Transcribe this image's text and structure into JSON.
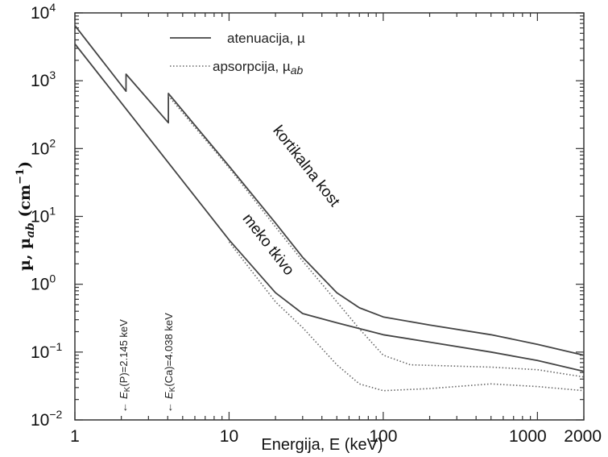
{
  "chart_data": {
    "type": "line",
    "xscale": "log",
    "yscale": "log",
    "xlim": [
      1,
      2000
    ],
    "ylim": [
      0.01,
      10000
    ],
    "xlabel": "Energija, E (keV)",
    "ylabel_main": "µ, µ",
    "ylabel_sub": "ab",
    "ylabel_unit": " (cm",
    "ylabel_exp": "−1",
    "ylabel_close": ")",
    "x_ticks": [
      {
        "value": 1,
        "label": "1"
      },
      {
        "value": 10,
        "label": "10"
      },
      {
        "value": 100,
        "label": "100"
      },
      {
        "value": 1000,
        "label": "1000"
      },
      {
        "value": 2000,
        "label": "2000"
      }
    ],
    "y_ticks": [
      {
        "value": 0.01,
        "base": "10",
        "exp": "−2"
      },
      {
        "value": 0.1,
        "base": "10",
        "exp": "−1"
      },
      {
        "value": 1,
        "base": "10",
        "exp": "0"
      },
      {
        "value": 10,
        "base": "10",
        "exp": "1"
      },
      {
        "value": 100,
        "base": "10",
        "exp": "2"
      },
      {
        "value": 1000,
        "base": "10",
        "exp": "3"
      },
      {
        "value": 10000,
        "base": "10",
        "exp": "4"
      }
    ],
    "legend": {
      "position": "top-center",
      "items": [
        {
          "name": "atenuacija, µ",
          "style": "solid"
        },
        {
          "name_main": "apsorpcija, µ",
          "name_sub": "ab",
          "style": "dotted"
        }
      ]
    },
    "series": [
      {
        "style": "solid",
        "points": [
          [
            1,
            6500
          ],
          [
            2.145,
            700
          ],
          [
            2.145,
            1250
          ],
          [
            4.038,
            240
          ],
          [
            4.038,
            650
          ],
          [
            10,
            55
          ],
          [
            20,
            8
          ],
          [
            30,
            2.5
          ],
          [
            50,
            0.75
          ],
          [
            70,
            0.45
          ],
          [
            100,
            0.33
          ],
          [
            200,
            0.25
          ],
          [
            500,
            0.18
          ],
          [
            1000,
            0.13
          ],
          [
            2000,
            0.09
          ]
        ]
      },
      {
        "style": "dotted",
        "points": [
          [
            4.038,
            600
          ],
          [
            10,
            52
          ],
          [
            20,
            7
          ],
          [
            30,
            2.2
          ],
          [
            50,
            0.55
          ],
          [
            70,
            0.22
          ],
          [
            100,
            0.09
          ],
          [
            150,
            0.065
          ],
          [
            500,
            0.06
          ],
          [
            1000,
            0.055
          ],
          [
            2000,
            0.043
          ]
        ]
      },
      {
        "style": "solid",
        "points": [
          [
            1,
            3500
          ],
          [
            10,
            4.5
          ],
          [
            20,
            0.75
          ],
          [
            30,
            0.37
          ],
          [
            50,
            0.27
          ],
          [
            100,
            0.18
          ],
          [
            200,
            0.14
          ],
          [
            500,
            0.1
          ],
          [
            1000,
            0.075
          ],
          [
            2000,
            0.052
          ]
        ]
      },
      {
        "style": "dotted",
        "points": [
          [
            10,
            4.2
          ],
          [
            20,
            0.55
          ],
          [
            30,
            0.23
          ],
          [
            50,
            0.065
          ],
          [
            70,
            0.034
          ],
          [
            100,
            0.027
          ],
          [
            200,
            0.029
          ],
          [
            500,
            0.034
          ],
          [
            1000,
            0.031
          ],
          [
            2000,
            0.027
          ]
        ]
      }
    ],
    "annotations": [
      {
        "id": "kost",
        "text": "kortikalna kost",
        "x": 30,
        "y": 50,
        "rotate": 52
      },
      {
        "id": "tkivo",
        "text": "meko tkivo",
        "x": 17,
        "y": 3.5,
        "rotate": 52
      }
    ],
    "edges": [
      {
        "id": "p",
        "x": 2.145,
        "prefix": "E",
        "sub": "K",
        "suffix": "(P)=2.145 keV"
      },
      {
        "id": "ca",
        "x": 4.038,
        "prefix": "E",
        "sub": "K",
        "suffix": "(Ca)=4.038 keV"
      }
    ]
  }
}
